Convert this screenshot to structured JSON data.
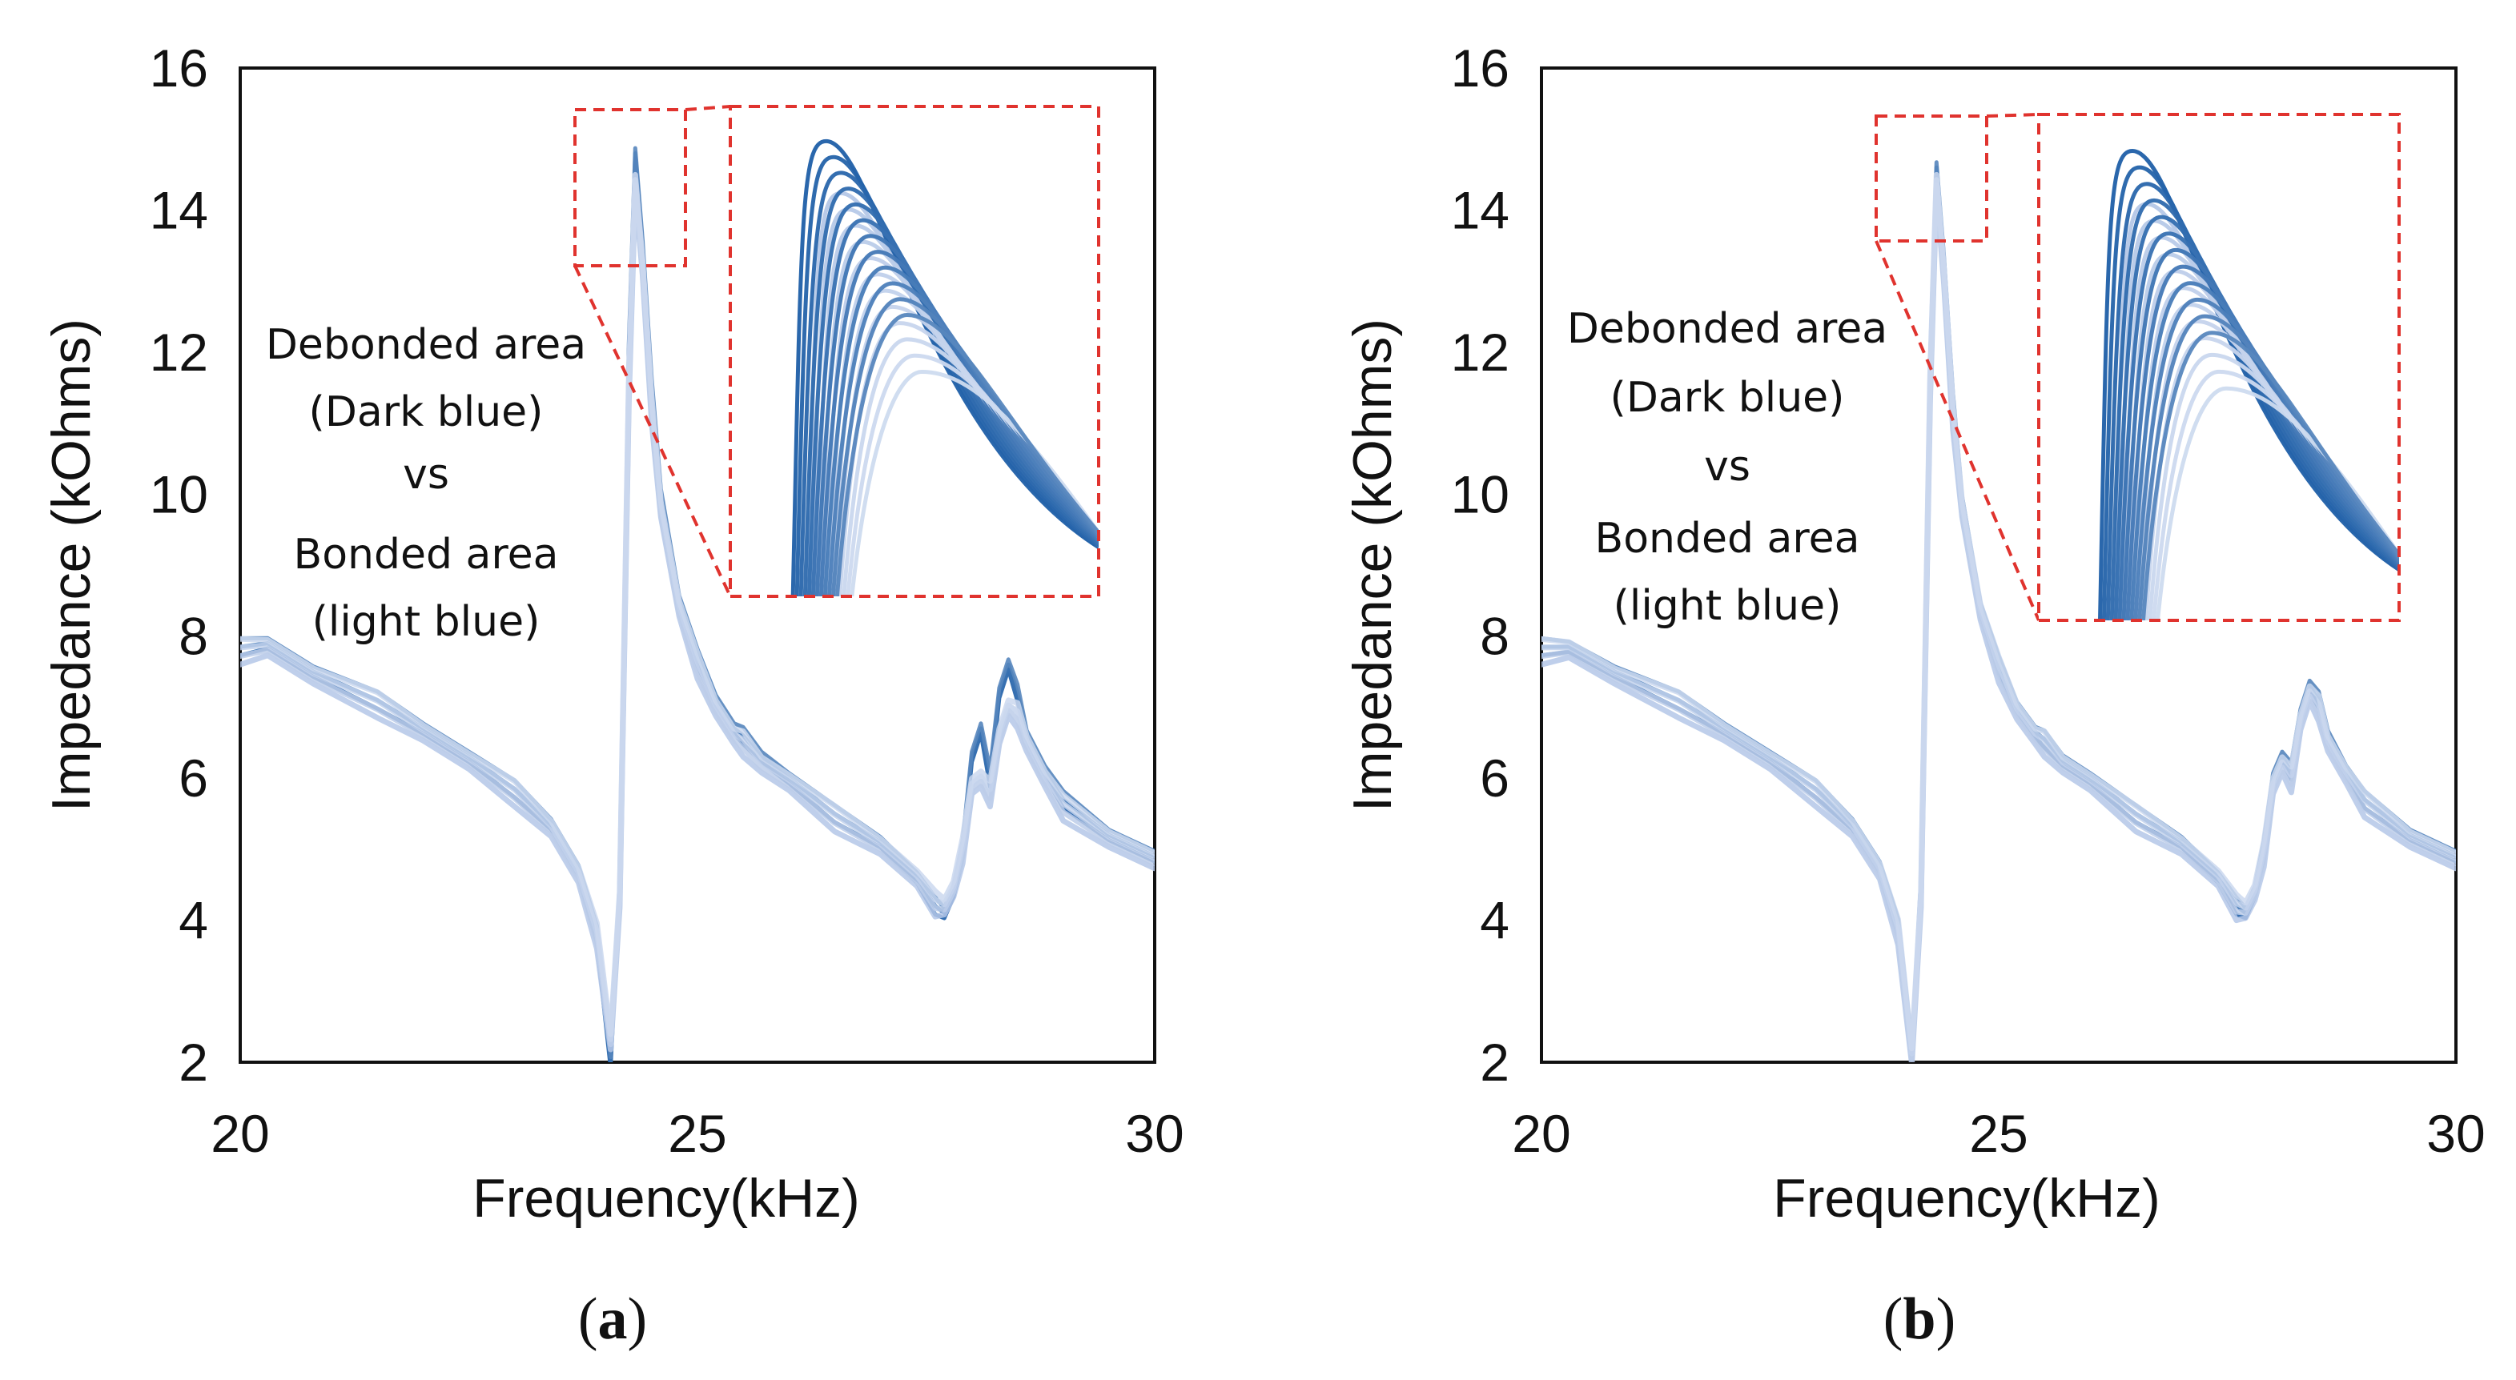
{
  "colors": {
    "dark_blue": "#1f5fa8",
    "light_blue": "#b4c7e7",
    "inset_border": "#e0332e",
    "axis": "#111111"
  },
  "chart_data": [
    {
      "type": "line",
      "panel": "(a)",
      "panel_letter": "a",
      "xlabel": "Frequency(kHz)",
      "ylabel": "Impedance  (kOhms)",
      "xlim": [
        20,
        30
      ],
      "ylim": [
        2,
        16
      ],
      "xticks": [
        20,
        25,
        30
      ],
      "yticks": [
        2,
        4,
        6,
        8,
        10,
        12,
        14,
        16
      ],
      "annotation": [
        "Debonded area",
        "(Dark blue)",
        "vs",
        "Bonded area",
        "(light blue)"
      ],
      "inset": {
        "description": "zoomed view of the resonance peak",
        "source_range": {
          "x": [
            23.7,
            25.0
          ],
          "y": [
            13.1,
            15.6
          ]
        }
      },
      "series": [
        {
          "name": "Debonded area (Dark blue)",
          "color": "#1f5fa8",
          "x": [
            20.0,
            20.3,
            20.8,
            21.5,
            22.0,
            22.5,
            23.0,
            23.4,
            23.7,
            23.9,
            24.05,
            24.15,
            24.25,
            24.32,
            24.4,
            24.5,
            24.6,
            24.8,
            25.0,
            25.2,
            25.4,
            25.5,
            25.7,
            26.0,
            26.5,
            27.0,
            27.4,
            27.6,
            27.7,
            27.8,
            27.9,
            28.0,
            28.1,
            28.2,
            28.3,
            28.4,
            28.5,
            28.6,
            28.8,
            29.0,
            29.5,
            30.0
          ],
          "y": [
            7.85,
            7.9,
            7.5,
            7.1,
            6.7,
            6.3,
            5.85,
            5.35,
            4.7,
            3.8,
            2.0,
            4.5,
            12.0,
            14.8,
            13.5,
            11.5,
            10.0,
            8.5,
            7.7,
            7.1,
            6.7,
            6.6,
            6.3,
            6.0,
            5.5,
            5.1,
            4.6,
            4.2,
            4.1,
            4.4,
            5.0,
            6.3,
            6.7,
            6.0,
            7.2,
            7.6,
            7.2,
            6.6,
            6.1,
            5.7,
            5.2,
            4.9
          ]
        },
        {
          "name": "Bonded area (light blue)",
          "color": "#b4c7e7",
          "x": [
            20.0,
            20.3,
            20.8,
            21.5,
            22.0,
            22.5,
            23.0,
            23.4,
            23.7,
            23.9,
            24.05,
            24.15,
            24.25,
            24.32,
            24.4,
            24.5,
            24.6,
            24.8,
            25.0,
            25.2,
            25.4,
            25.5,
            25.7,
            26.0,
            26.5,
            27.0,
            27.4,
            27.6,
            27.7,
            27.8,
            27.9,
            28.0,
            28.1,
            28.2,
            28.3,
            28.4,
            28.5,
            28.6,
            28.8,
            29.0,
            29.5,
            30.0
          ],
          "y": [
            7.8,
            7.85,
            7.45,
            7.05,
            6.65,
            6.25,
            5.8,
            5.3,
            4.65,
            3.8,
            2.3,
            4.3,
            11.5,
            14.4,
            13.2,
            11.2,
            9.8,
            8.4,
            7.6,
            7.0,
            6.6,
            6.5,
            6.2,
            5.95,
            5.45,
            5.05,
            4.6,
            4.25,
            4.2,
            4.45,
            5.0,
            5.9,
            6.0,
            5.8,
            6.6,
            7.0,
            6.9,
            6.5,
            6.0,
            5.6,
            5.15,
            4.85
          ]
        }
      ]
    },
    {
      "type": "line",
      "panel": "(b)",
      "panel_letter": "b",
      "xlabel": "Frequency(kHz)",
      "ylabel": "Impedance  (kOhms)",
      "xlim": [
        20,
        30
      ],
      "ylim": [
        2,
        16
      ],
      "xticks": [
        20,
        25,
        30
      ],
      "yticks": [
        2,
        4,
        6,
        8,
        10,
        12,
        14,
        16
      ],
      "annotation": [
        "Debonded area",
        "(Dark blue)",
        "vs",
        "Bonded area",
        "(light blue)"
      ],
      "inset": {
        "description": "zoomed view of the resonance peak",
        "source_range": {
          "x": [
            23.7,
            24.9
          ],
          "y": [
            13.5,
            15.5
          ]
        }
      },
      "series": [
        {
          "name": "Debonded area (Dark blue)",
          "color": "#1f5fa8",
          "x": [
            20.0,
            20.3,
            20.8,
            21.5,
            22.0,
            22.5,
            23.0,
            23.4,
            23.7,
            23.9,
            24.05,
            24.15,
            24.25,
            24.32,
            24.4,
            24.5,
            24.6,
            24.8,
            25.0,
            25.2,
            25.4,
            25.5,
            25.7,
            26.0,
            26.5,
            27.0,
            27.4,
            27.6,
            27.7,
            27.8,
            27.9,
            28.0,
            28.1,
            28.2,
            28.3,
            28.4,
            28.5,
            28.6,
            28.8,
            29.0,
            29.5,
            30.0
          ],
          "y": [
            7.85,
            7.85,
            7.5,
            7.1,
            6.7,
            6.3,
            5.85,
            5.35,
            4.75,
            3.9,
            2.2,
            4.5,
            11.8,
            14.6,
            13.3,
            11.3,
            9.9,
            8.4,
            7.6,
            7.0,
            6.65,
            6.55,
            6.25,
            6.0,
            5.5,
            5.1,
            4.6,
            4.2,
            4.1,
            4.4,
            5.0,
            6.0,
            6.3,
            6.1,
            6.9,
            7.3,
            7.1,
            6.6,
            6.1,
            5.7,
            5.2,
            4.9
          ]
        },
        {
          "name": "Bonded area (light blue)",
          "color": "#b4c7e7",
          "x": [
            20.0,
            20.3,
            20.8,
            21.5,
            22.0,
            22.5,
            23.0,
            23.4,
            23.7,
            23.9,
            24.05,
            24.15,
            24.25,
            24.32,
            24.4,
            24.5,
            24.6,
            24.8,
            25.0,
            25.2,
            25.4,
            25.5,
            25.7,
            26.0,
            26.5,
            27.0,
            27.4,
            27.6,
            27.7,
            27.8,
            27.9,
            28.0,
            28.1,
            28.2,
            28.3,
            28.4,
            28.5,
            28.6,
            28.8,
            29.0,
            29.5,
            30.0
          ],
          "y": [
            7.8,
            7.82,
            7.45,
            7.05,
            6.65,
            6.25,
            5.8,
            5.3,
            4.7,
            3.85,
            2.1,
            4.3,
            11.5,
            14.4,
            13.1,
            11.1,
            9.8,
            8.35,
            7.55,
            6.95,
            6.6,
            6.5,
            6.2,
            5.95,
            5.45,
            5.05,
            4.6,
            4.2,
            4.15,
            4.4,
            4.95,
            5.9,
            6.2,
            6.0,
            6.8,
            7.2,
            7.0,
            6.5,
            6.05,
            5.65,
            5.15,
            4.85
          ]
        }
      ]
    }
  ]
}
